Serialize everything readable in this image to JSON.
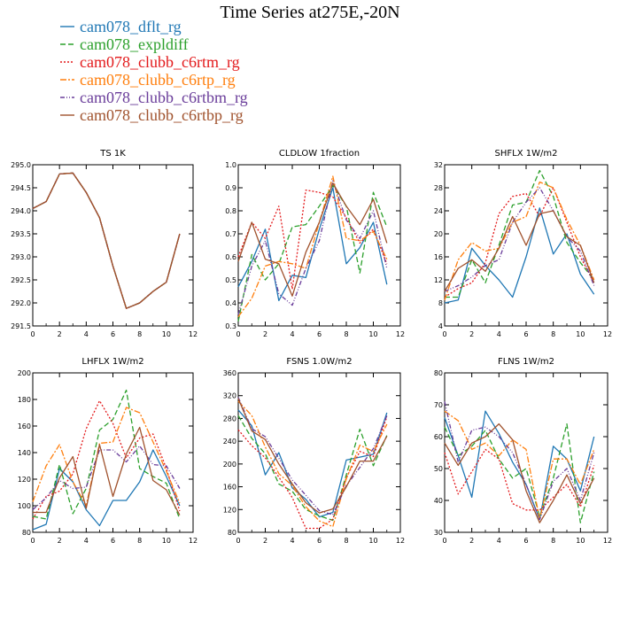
{
  "title": "Time Series at275E,-20N",
  "legend": [
    {
      "label": "cam078_dflt_rg",
      "color": "#1f77b4",
      "dash": "solid"
    },
    {
      "label": "cam078_expldiff",
      "color": "#2ca02c",
      "dash": "dashed"
    },
    {
      "label": "cam078_clubb_c6rtm_rg",
      "color": "#e31a1c",
      "dash": "dotted"
    },
    {
      "label": "cam078_clubb_c6rtp_rg",
      "color": "#ff7f0e",
      "dash": "dashdot"
    },
    {
      "label": "cam078_clubb_c6rtbm_rg",
      "color": "#6a3d9a",
      "dash": "dashdot2"
    },
    {
      "label": "cam078_clubb_c6rtbp_rg",
      "color": "#a0522d",
      "dash": "solid"
    }
  ],
  "chart_data": [
    {
      "type": "line",
      "title": "TS   1K",
      "xlim": [
        0,
        12
      ],
      "xticks": [
        0,
        2,
        4,
        6,
        8,
        10,
        12
      ],
      "ylim": [
        291.5,
        295.0
      ],
      "yticks": [
        "291.5",
        "292.0",
        "292.5",
        "293.0",
        "293.5",
        "294.0",
        "294.5",
        "295.0"
      ],
      "x": [
        0,
        1,
        2,
        3,
        4,
        5,
        6,
        7,
        8,
        9,
        10,
        11
      ],
      "series": [
        {
          "values": [
            294.05,
            294.2,
            294.8,
            294.82,
            294.4,
            293.85,
            292.8,
            291.88,
            292.0,
            292.25,
            292.45,
            293.5
          ]
        },
        {
          "values": [
            294.05,
            294.2,
            294.8,
            294.82,
            294.4,
            293.85,
            292.8,
            291.88,
            292.0,
            292.25,
            292.45,
            293.5
          ]
        },
        {
          "values": [
            294.05,
            294.2,
            294.8,
            294.82,
            294.4,
            293.85,
            292.8,
            291.88,
            292.0,
            292.25,
            292.45,
            293.5
          ]
        },
        {
          "values": [
            294.05,
            294.2,
            294.8,
            294.82,
            294.4,
            293.85,
            292.8,
            291.88,
            292.0,
            292.25,
            292.45,
            293.5
          ]
        },
        {
          "values": [
            294.05,
            294.2,
            294.8,
            294.82,
            294.4,
            293.85,
            292.8,
            291.88,
            292.0,
            292.25,
            292.45,
            293.5
          ]
        },
        {
          "values": [
            294.05,
            294.2,
            294.8,
            294.82,
            294.4,
            293.85,
            292.8,
            291.88,
            292.0,
            292.25,
            292.45,
            293.5
          ]
        }
      ]
    },
    {
      "type": "line",
      "title": "CLDLOW   1fraction",
      "xlim": [
        0,
        12
      ],
      "xticks": [
        0,
        2,
        4,
        6,
        8,
        10,
        12
      ],
      "ylim": [
        0.3,
        1.0
      ],
      "yticks": [
        "0.3",
        "0.4",
        "0.5",
        "0.6",
        "0.7",
        "0.8",
        "0.9",
        "1.0"
      ],
      "x": [
        0,
        1,
        2,
        3,
        4,
        5,
        6,
        7,
        8,
        9,
        10,
        11
      ],
      "series": [
        {
          "values": [
            0.47,
            0.58,
            0.72,
            0.41,
            0.52,
            0.51,
            0.72,
            0.9,
            0.57,
            0.64,
            0.75,
            0.48
          ]
        },
        {
          "values": [
            0.32,
            0.61,
            0.5,
            0.57,
            0.73,
            0.74,
            0.82,
            0.91,
            0.82,
            0.53,
            0.88,
            0.73
          ]
        },
        {
          "values": [
            0.6,
            0.75,
            0.68,
            0.82,
            0.46,
            0.89,
            0.88,
            0.86,
            0.77,
            0.66,
            0.72,
            0.57
          ]
        },
        {
          "values": [
            0.34,
            0.42,
            0.56,
            0.58,
            0.57,
            0.55,
            0.75,
            0.95,
            0.68,
            0.67,
            0.71,
            0.59
          ]
        },
        {
          "values": [
            0.35,
            0.56,
            0.67,
            0.44,
            0.39,
            0.55,
            0.67,
            0.93,
            0.76,
            0.68,
            0.8,
            0.55
          ]
        },
        {
          "values": [
            0.58,
            0.75,
            0.59,
            0.57,
            0.43,
            0.62,
            0.75,
            0.92,
            0.82,
            0.74,
            0.85,
            0.66
          ]
        }
      ]
    },
    {
      "type": "line",
      "title": "SHFLX   1W/m2",
      "xlim": [
        0,
        12
      ],
      "xticks": [
        0,
        2,
        4,
        6,
        8,
        10,
        12
      ],
      "ylim": [
        4,
        32
      ],
      "yticks": [
        "4",
        "8",
        "12",
        "16",
        "20",
        "24",
        "28",
        "32"
      ],
      "x": [
        0,
        1,
        2,
        3,
        4,
        5,
        6,
        7,
        8,
        9,
        10,
        11
      ],
      "series": [
        {
          "values": [
            8.0,
            8.5,
            17.5,
            14.5,
            12.0,
            9.0,
            16.0,
            24.5,
            16.5,
            20.0,
            13.0,
            9.5
          ]
        },
        {
          "values": [
            9.0,
            9.0,
            15.5,
            11.5,
            18.0,
            25.0,
            25.5,
            31.0,
            26.5,
            18.5,
            15.0,
            12.0
          ]
        },
        {
          "values": [
            9.0,
            10.5,
            11.5,
            15.0,
            23.5,
            26.5,
            27.0,
            23.0,
            28.0,
            22.0,
            16.0,
            11.5
          ]
        },
        {
          "values": [
            8.5,
            15.5,
            18.5,
            17.0,
            17.5,
            22.0,
            23.0,
            29.0,
            28.0,
            22.5,
            18.0,
            12.0
          ]
        },
        {
          "values": [
            10.0,
            11.0,
            12.5,
            14.5,
            15.5,
            22.0,
            25.5,
            28.0,
            24.0,
            19.5,
            17.0,
            11.0
          ]
        },
        {
          "values": [
            10.0,
            14.0,
            15.5,
            13.5,
            17.5,
            23.0,
            18.0,
            23.5,
            24.0,
            19.5,
            18.0,
            11.5
          ]
        }
      ]
    },
    {
      "type": "line",
      "title": "LHFLX   1W/m2",
      "xlim": [
        0,
        12
      ],
      "xticks": [
        0,
        2,
        4,
        6,
        8,
        10,
        12
      ],
      "ylim": [
        80,
        200
      ],
      "yticks": [
        "80",
        "100",
        "120",
        "140",
        "160",
        "180",
        "200"
      ],
      "x": [
        0,
        1,
        2,
        3,
        4,
        5,
        6,
        7,
        8,
        9,
        10,
        11
      ],
      "series": [
        {
          "values": [
            82,
            86,
            128,
            118,
            97,
            85,
            104,
            104,
            118,
            142,
            122,
            100
          ]
        },
        {
          "values": [
            92,
            90,
            131,
            94,
            113,
            157,
            165,
            187,
            128,
            122,
            117,
            90
          ]
        },
        {
          "values": [
            90,
            107,
            111,
            124,
            158,
            179,
            162,
            136,
            151,
            154,
            128,
            96
          ]
        },
        {
          "values": [
            103,
            130,
            146,
            118,
            100,
            147,
            148,
            174,
            170,
            148,
            126,
            102
          ]
        },
        {
          "values": [
            97,
            106,
            119,
            113,
            114,
            142,
            142,
            133,
            145,
            131,
            130,
            113
          ]
        },
        {
          "values": [
            95,
            95,
            121,
            137,
            98,
            146,
            107,
            139,
            159,
            119,
            112,
            93
          ]
        }
      ]
    },
    {
      "type": "line",
      "title": "FSNS   1.0W/m2",
      "xlim": [
        0,
        12
      ],
      "xticks": [
        0,
        2,
        4,
        6,
        8,
        10,
        12
      ],
      "ylim": [
        80,
        360
      ],
      "yticks": [
        "80",
        "120",
        "160",
        "200",
        "240",
        "280",
        "320",
        "360"
      ],
      "x": [
        0,
        1,
        2,
        3,
        4,
        5,
        6,
        7,
        8,
        9,
        10,
        11
      ],
      "series": [
        {
          "values": [
            295,
            267,
            181,
            220,
            158,
            138,
            107,
            115,
            207,
            212,
            217,
            290
          ]
        },
        {
          "values": [
            285,
            245,
            218,
            165,
            152,
            120,
            109,
            101,
            181,
            261,
            197,
            250
          ]
        },
        {
          "values": [
            260,
            232,
            211,
            177,
            141,
            87,
            87,
            103,
            176,
            222,
            213,
            283
          ]
        },
        {
          "values": [
            310,
            285,
            230,
            183,
            162,
            125,
            100,
            90,
            174,
            233,
            222,
            270
          ]
        },
        {
          "values": [
            317,
            262,
            248,
            210,
            172,
            145,
            118,
            111,
            162,
            194,
            227,
            285
          ]
        },
        {
          "values": [
            315,
            258,
            243,
            200,
            165,
            132,
            114,
            121,
            160,
            205,
            205,
            249
          ]
        }
      ]
    },
    {
      "type": "line",
      "title": "FLNS   1W/m2",
      "xlim": [
        0,
        12
      ],
      "xticks": [
        0,
        2,
        4,
        6,
        8,
        10,
        12
      ],
      "ylim": [
        30,
        80
      ],
      "yticks": [
        "30",
        "40",
        "50",
        "60",
        "70",
        "80"
      ],
      "x": [
        0,
        1,
        2,
        3,
        4,
        5,
        6,
        7,
        8,
        9,
        10,
        11
      ],
      "series": [
        {
          "values": [
            66,
            54,
            41,
            68,
            61,
            52,
            45,
            34,
            57,
            53,
            43,
            60
          ]
        },
        {
          "values": [
            63,
            54,
            57,
            62,
            53,
            47,
            50,
            35,
            47,
            64,
            33,
            49
          ]
        },
        {
          "values": [
            55,
            42,
            49,
            56,
            53,
            39,
            37,
            37,
            41,
            45,
            38,
            51
          ]
        },
        {
          "values": [
            68,
            65,
            56,
            58,
            54,
            59,
            56,
            34,
            53,
            53,
            45,
            56
          ]
        },
        {
          "values": [
            71,
            52,
            62,
            63,
            60,
            55,
            45,
            34,
            46,
            50,
            40,
            55
          ]
        },
        {
          "values": [
            58,
            51,
            58,
            60,
            64,
            59,
            43,
            33,
            40,
            48,
            39,
            47
          ]
        }
      ]
    }
  ]
}
